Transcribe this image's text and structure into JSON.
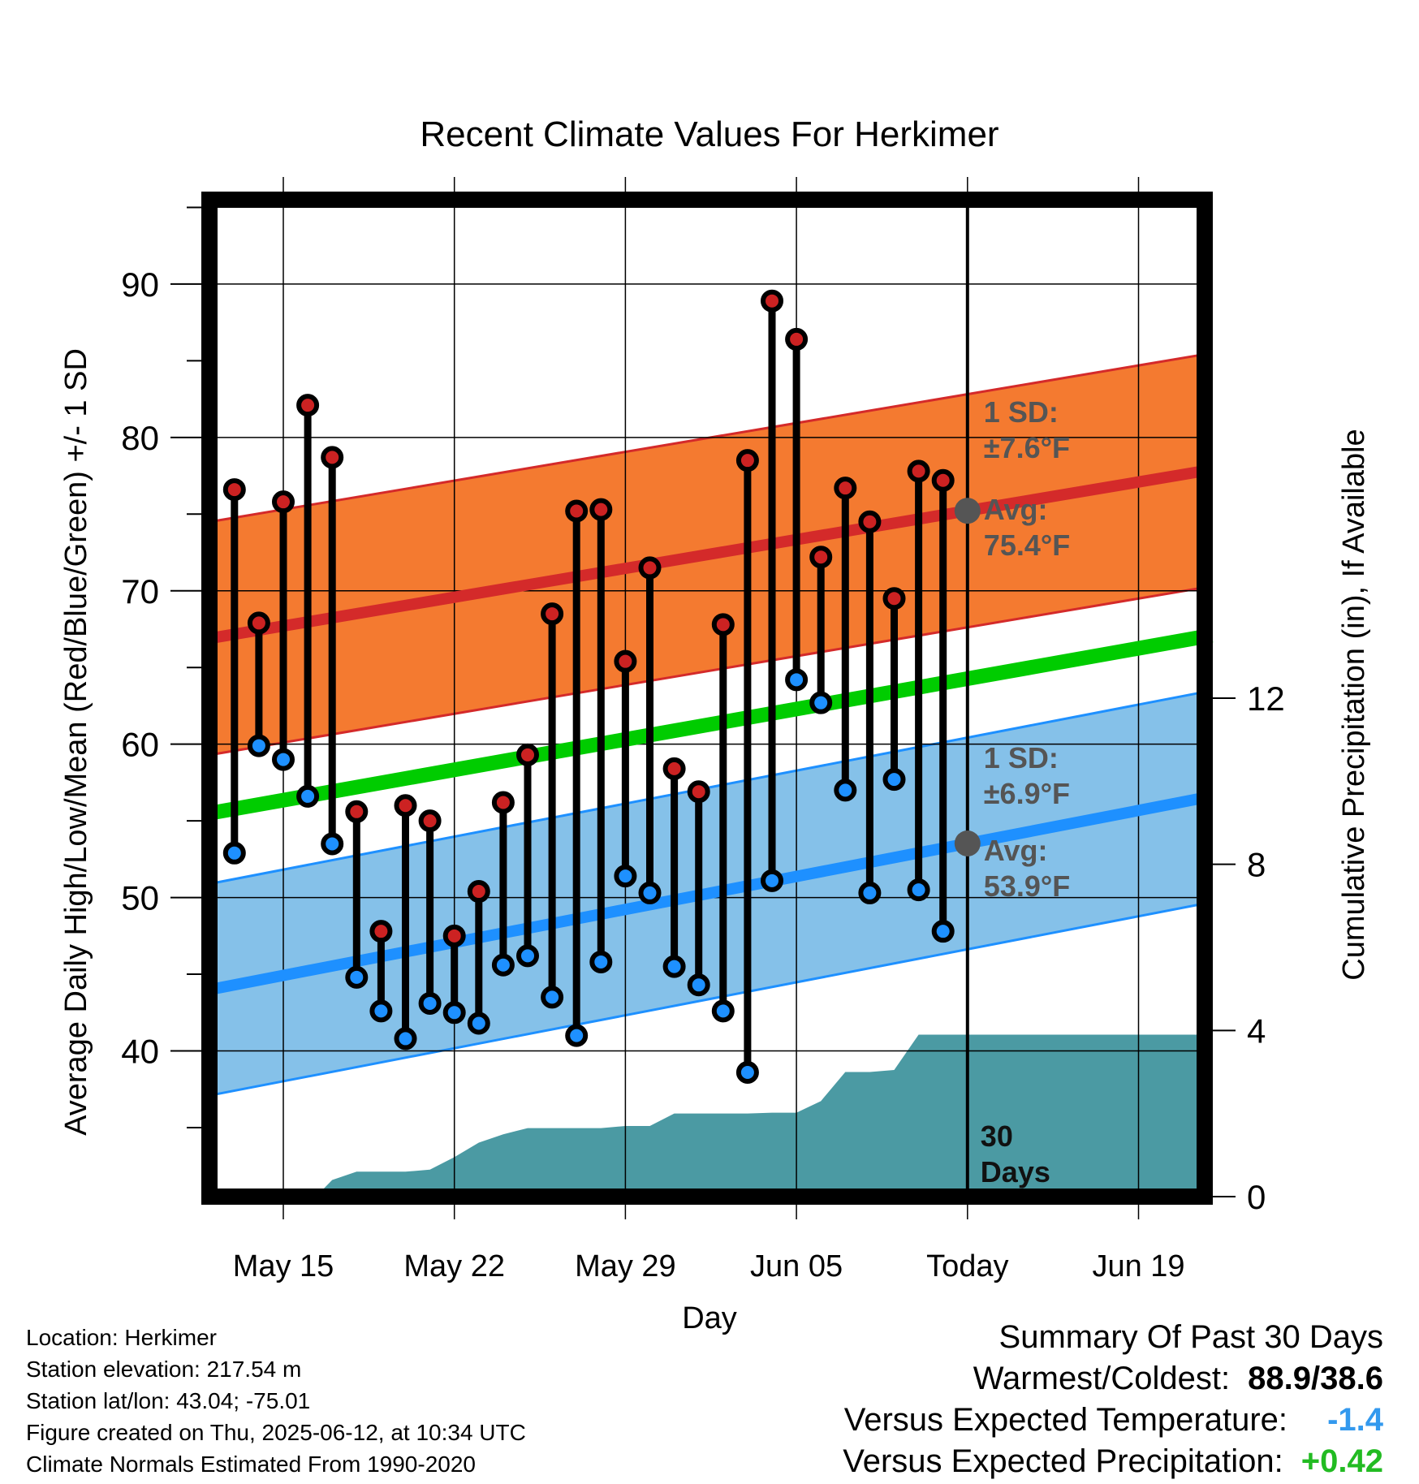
{
  "title": "Recent Climate Values For Herkimer",
  "xlabel": "Day",
  "ylabel_left": "Average Daily High/Low/Mean (Red/Blue/Green) +/- 1 SD",
  "ylabel_right": "Cumulative Precipitation (in), If Available",
  "x_tick_labels": [
    "May 15",
    "May 22",
    "May 29",
    "Jun 05",
    "Today",
    "Jun 19"
  ],
  "y_left_tick_labels": [
    "40",
    "50",
    "60",
    "70",
    "80",
    "90"
  ],
  "y_right_tick_labels": [
    "0",
    "4",
    "8",
    "12"
  ],
  "annotations": {
    "high_sd_line1": "1 SD:",
    "high_sd_line2": "±7.6°F",
    "high_avg_line1": "Avg:",
    "high_avg_line2": "75.4°F",
    "low_sd_line1": "1 SD:",
    "low_sd_line2": "±6.9°F",
    "low_avg_line1": "Avg:",
    "low_avg_line2": "53.9°F",
    "days_line1": "30",
    "days_line2": "Days"
  },
  "info": {
    "location": "Location: Herkimer",
    "elevation": "Station elevation: 217.54 m",
    "latlon": "Station lat/lon: 43.04; -75.01",
    "created": "Figure created on Thu, 2025-06-12, at 10:34 UTC",
    "normals": "Climate Normals Estimated From 1990-2020"
  },
  "summary": {
    "heading": "Summary Of Past 30 Days",
    "warm_cold_label": "Warmest/Coldest:",
    "warmest": "88.9",
    "sep": "/",
    "coldest": "38.6",
    "temp_label": "Versus Expected Temperature:",
    "temp_value": "-1.4",
    "precip_label": "Versus Expected Precipitation:",
    "precip_value": "+0.42"
  },
  "colors": {
    "high_band": "#f47a30",
    "high_avg": "#d42a2a",
    "low_band": "#85c1e9",
    "low_avg": "#1e90ff",
    "mean": "#00cc00",
    "precip": "#4b9aa3",
    "high_dot": "#cc2222",
    "low_dot": "#1e90ff",
    "sd_text": "#555555",
    "temp_value": "#3399ee",
    "precip_value": "#22bb22"
  },
  "chart_data": {
    "type": "line",
    "x_unit": "date (2025)",
    "xlim": [
      "2025-05-12",
      "2025-06-22"
    ],
    "ylim_left": [
      30.5,
      95.5
    ],
    "ylim_right": [
      0,
      24
    ],
    "today": "2025-06-12",
    "days": [
      "2025-05-13",
      "2025-05-14",
      "2025-05-15",
      "2025-05-16",
      "2025-05-17",
      "2025-05-18",
      "2025-05-19",
      "2025-05-20",
      "2025-05-21",
      "2025-05-22",
      "2025-05-23",
      "2025-05-24",
      "2025-05-25",
      "2025-05-26",
      "2025-05-27",
      "2025-05-28",
      "2025-05-29",
      "2025-05-30",
      "2025-05-31",
      "2025-06-01",
      "2025-06-02",
      "2025-06-03",
      "2025-06-04",
      "2025-06-05",
      "2025-06-06",
      "2025-06-07",
      "2025-06-08",
      "2025-06-09",
      "2025-06-10",
      "2025-06-11"
    ],
    "series": [
      {
        "name": "High",
        "values": [
          76.6,
          67.9,
          75.8,
          82.1,
          78.7,
          55.6,
          47.8,
          56.0,
          55.0,
          47.5,
          50.4,
          56.2,
          59.3,
          68.5,
          75.2,
          75.3,
          65.4,
          71.5,
          58.4,
          56.9,
          67.8,
          78.5,
          88.9,
          86.4,
          72.2,
          76.7,
          74.5,
          69.5,
          77.8,
          77.2
        ]
      },
      {
        "name": "Low",
        "values": [
          52.9,
          59.9,
          59.0,
          56.6,
          53.5,
          44.8,
          42.6,
          40.8,
          43.1,
          42.5,
          41.8,
          45.6,
          46.2,
          43.5,
          41.0,
          45.8,
          51.4,
          50.3,
          45.5,
          44.3,
          42.6,
          38.6,
          51.1,
          64.2,
          62.7,
          57.0,
          50.3,
          57.7,
          50.5,
          47.8
        ]
      }
    ],
    "normal_high": {
      "x": [
        "2025-05-12",
        "2025-06-22"
      ],
      "avg": [
        66.9,
        77.9
      ],
      "sd": 7.6
    },
    "normal_low": {
      "x": [
        "2025-05-12",
        "2025-06-22"
      ],
      "avg": [
        44.0,
        56.6
      ],
      "sd": 6.9
    },
    "normal_mean": {
      "x": [
        "2025-05-12",
        "2025-06-22"
      ],
      "values": [
        55.5,
        67.1
      ]
    },
    "cumulative_precip": {
      "x": [
        "2025-05-17",
        "2025-05-18",
        "2025-05-19",
        "2025-05-20",
        "2025-05-21",
        "2025-05-22",
        "2025-05-23",
        "2025-05-24",
        "2025-05-25",
        "2025-05-26",
        "2025-05-27",
        "2025-05-28",
        "2025-05-29",
        "2025-05-30",
        "2025-05-31",
        "2025-06-01",
        "2025-06-02",
        "2025-06-03",
        "2025-06-04",
        "2025-06-05",
        "2025-06-06",
        "2025-06-07",
        "2025-06-08",
        "2025-06-09",
        "2025-06-10",
        "2025-06-11",
        "2025-06-12",
        "2025-06-22"
      ],
      "values": [
        0.4,
        0.6,
        0.6,
        0.6,
        0.65,
        0.95,
        1.3,
        1.5,
        1.65,
        1.65,
        1.65,
        1.65,
        1.7,
        1.7,
        2.0,
        2.0,
        2.0,
        2.0,
        2.02,
        2.02,
        2.3,
        3.0,
        3.0,
        3.05,
        3.9,
        3.9,
        3.9,
        3.9
      ]
    }
  }
}
